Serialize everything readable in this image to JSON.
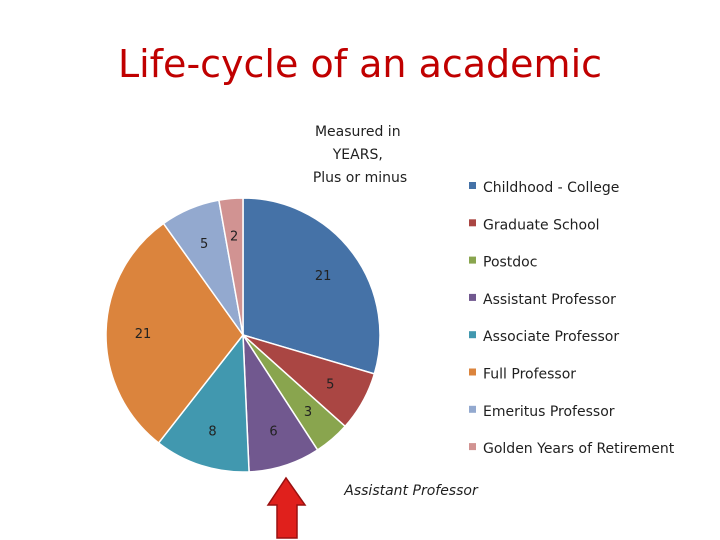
{
  "slide": {
    "title": "Life-cycle of an academic"
  },
  "annotations": {
    "note_lines": [
      "Measured in",
      "YEARS,",
      "Plus or minus"
    ],
    "callout_label": "Assistant Professor",
    "arrow_color": "#e0201c"
  },
  "chart_data": {
    "type": "pie",
    "title": "",
    "legend_position": "right",
    "categories": [
      "Childhood - College",
      "Graduate School",
      "Postdoc",
      "Assistant Professor",
      "Associate Professor",
      "Full Professor",
      "Emeritus Professor",
      "Golden Years of Retirement"
    ],
    "values": [
      21,
      5,
      3,
      6,
      8,
      21,
      5,
      2
    ],
    "colors": [
      "#4572a7",
      "#aa4643",
      "#89a54e",
      "#71588f",
      "#4198af",
      "#db843d",
      "#93a9cf",
      "#d19392"
    ]
  }
}
